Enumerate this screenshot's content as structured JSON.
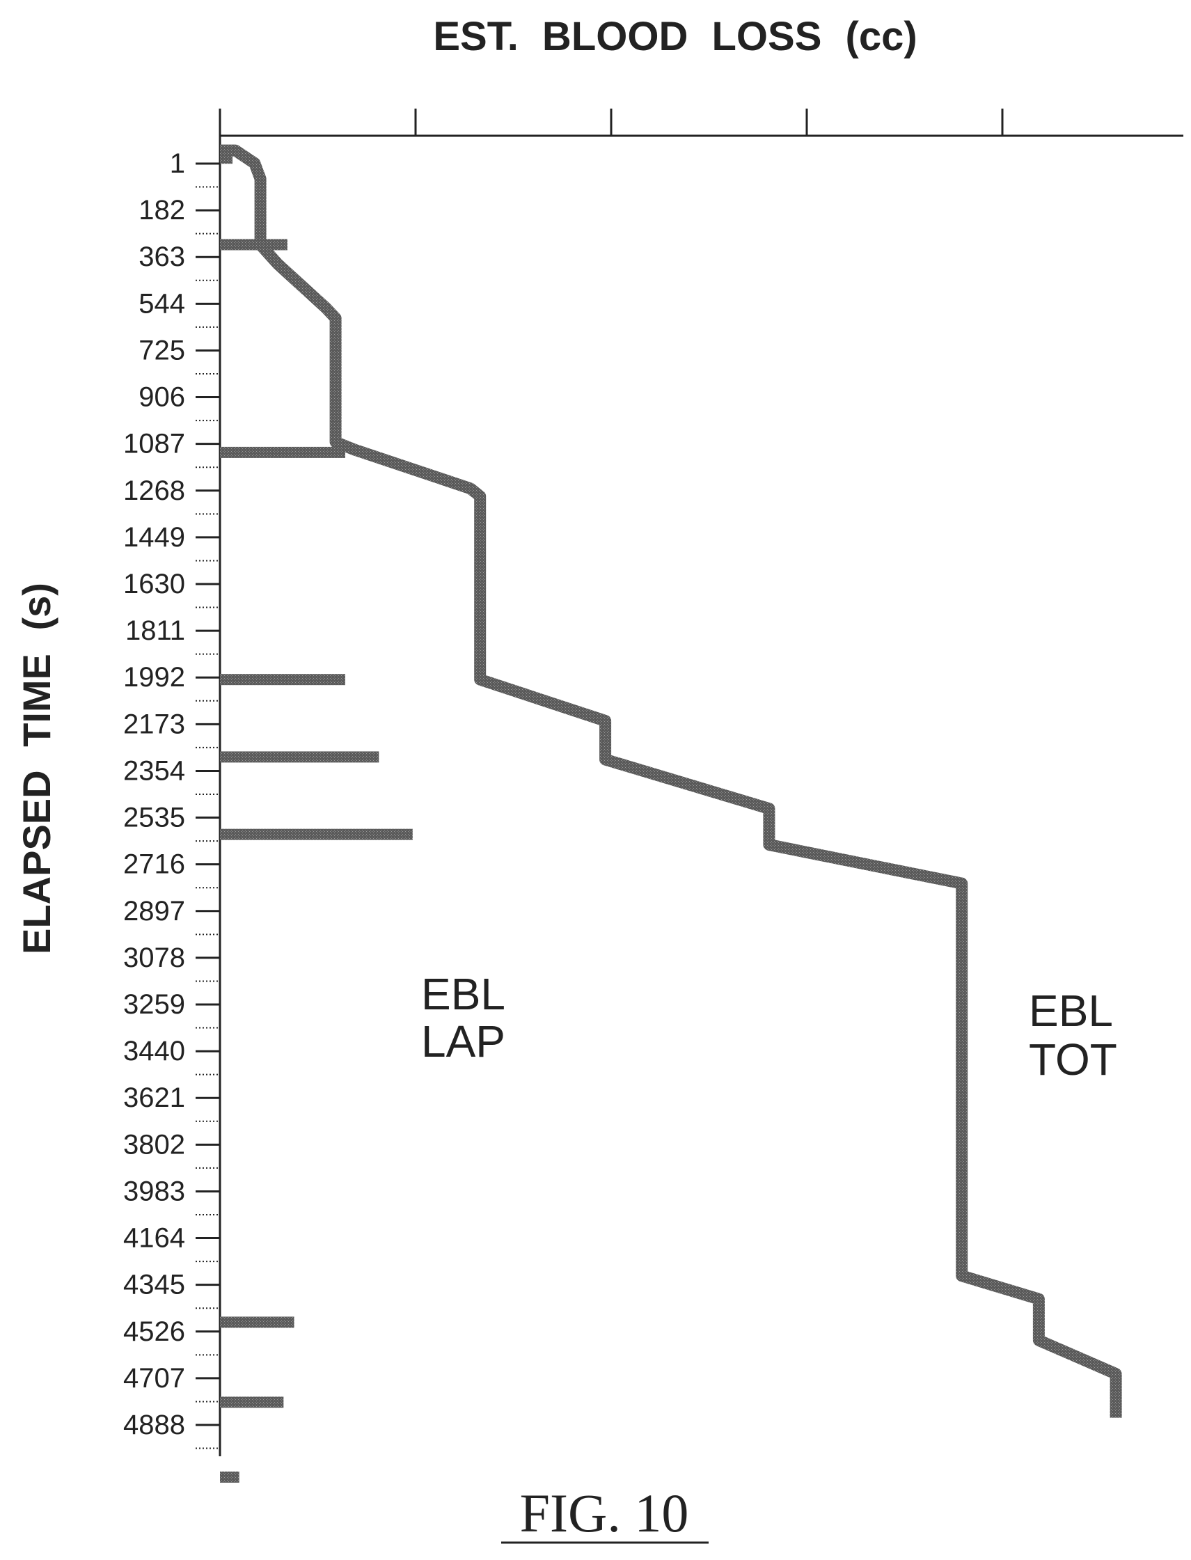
{
  "figure": {
    "label": "FIG. 10"
  },
  "chart_data": {
    "type": "line",
    "title": "EST. BLOOD LOSS (cc)",
    "xlabel": "",
    "ylabel": "ELAPSED TIME (s)",
    "ylim": [
      -90,
      5400
    ],
    "y_inverted": true,
    "yticks": [
      1,
      182,
      363,
      544,
      725,
      906,
      1087,
      1268,
      1449,
      1630,
      1811,
      1992,
      2173,
      2354,
      2535,
      2716,
      2897,
      3078,
      3259,
      3440,
      3621,
      3802,
      3983,
      4164,
      4345,
      4526,
      4707,
      4888
    ],
    "xlim": [
      0,
      1
    ],
    "grid": false,
    "series": [
      {
        "name": "EBL TOT",
        "label_lines": [
          "EBL",
          "TOT"
        ],
        "color": "#4a4a4a",
        "style": "thick-line",
        "points": [
          [
            0,
            -50
          ],
          [
            0.016,
            -50
          ],
          [
            0.036,
            0
          ],
          [
            0.042,
            60
          ],
          [
            0.042,
            315
          ],
          [
            0.06,
            390
          ],
          [
            0.11,
            560
          ],
          [
            0.12,
            600
          ],
          [
            0.12,
            1080
          ],
          [
            0.14,
            1110
          ],
          [
            0.26,
            1260
          ],
          [
            0.27,
            1290
          ],
          [
            0.27,
            2000
          ],
          [
            0.4,
            2160
          ],
          [
            0.4,
            2310
          ],
          [
            0.57,
            2500
          ],
          [
            0.57,
            2640
          ],
          [
            0.77,
            2790
          ],
          [
            0.77,
            4310
          ],
          [
            0.85,
            4400
          ],
          [
            0.85,
            4560
          ],
          [
            0.93,
            4690
          ],
          [
            0.93,
            4860
          ]
        ]
      },
      {
        "name": "EBL LAP",
        "label_lines": [
          "EBL",
          "LAP"
        ],
        "color": "#555555",
        "style": "bars",
        "points": [
          [
            0.0,
            -20
          ],
          [
            0.07,
            315
          ],
          [
            0.13,
            1120
          ],
          [
            0.13,
            2000
          ],
          [
            0.165,
            2300
          ],
          [
            0.2,
            2600
          ],
          [
            0.077,
            4490
          ],
          [
            0.066,
            4800
          ],
          [
            0.02,
            5090
          ]
        ]
      }
    ]
  }
}
